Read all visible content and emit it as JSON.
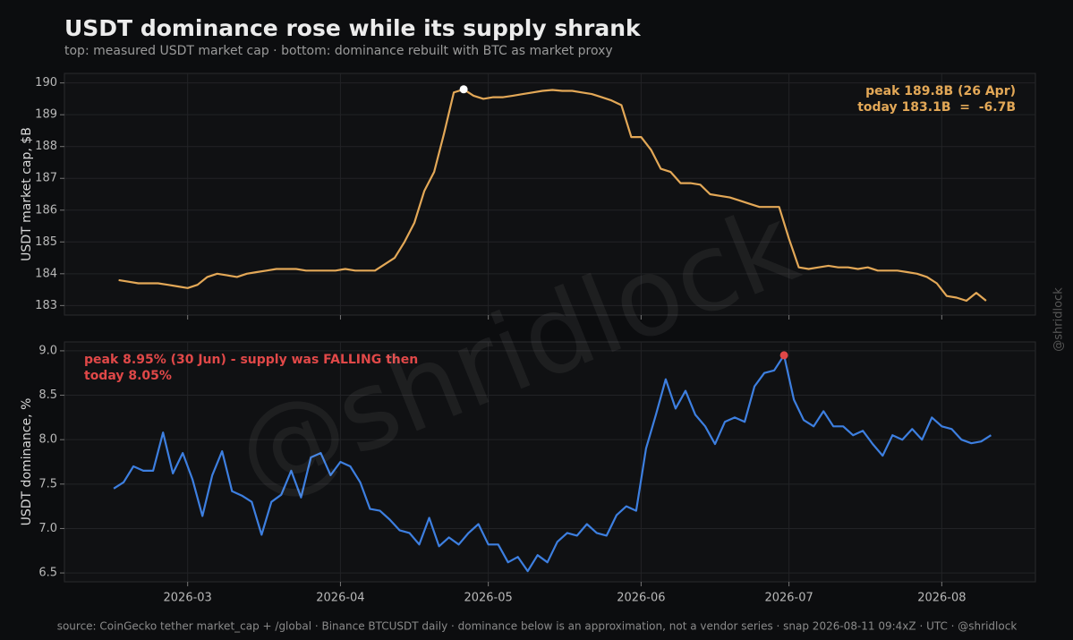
{
  "title": "USDT dominance rose while its supply shrank",
  "subtitle": "top: measured USDT market cap · bottom: dominance rebuilt with BTC as market proxy",
  "source": "source: CoinGecko tether market_cap + /global · Binance BTCUSDT daily · dominance below is an approximation, not a vendor series · snap 2026-08-11 09:4xZ · UTC · @shridlock",
  "watermark": "@shridlock",
  "side_credit": "@shridlock",
  "chart_data": [
    {
      "type": "line",
      "ylabel": "USDT market cap, $B",
      "x": [
        45,
        47,
        49,
        51,
        53,
        55,
        57,
        59,
        61,
        63,
        65,
        67,
        69,
        71,
        73,
        75,
        77,
        79,
        81,
        83,
        85,
        87,
        89,
        91,
        93,
        95,
        97,
        99,
        101,
        103,
        105,
        107,
        109,
        111,
        113,
        115,
        117,
        119,
        121,
        123,
        125,
        127,
        129,
        131,
        133,
        135,
        137,
        139,
        141,
        143,
        145,
        147,
        149,
        151,
        153,
        155,
        157,
        159,
        161,
        163,
        165,
        167,
        169,
        171,
        173,
        175,
        177,
        179,
        181,
        183,
        185,
        187,
        189,
        191,
        193,
        195,
        197,
        199,
        201,
        203,
        205,
        207,
        209,
        211,
        213,
        215,
        217,
        219,
        221
      ],
      "series": [
        {
          "color": "#e3a857",
          "values": [
            183.8,
            183.75,
            183.7,
            183.7,
            183.7,
            183.65,
            183.6,
            183.55,
            183.65,
            183.9,
            184.0,
            183.95,
            183.9,
            184.0,
            184.05,
            184.1,
            184.15,
            184.15,
            184.15,
            184.1,
            184.1,
            184.1,
            184.1,
            184.15,
            184.1,
            184.1,
            184.1,
            184.3,
            184.5,
            185.0,
            185.6,
            186.6,
            187.2,
            188.4,
            189.7,
            189.8,
            189.6,
            189.5,
            189.55,
            189.55,
            189.6,
            189.65,
            189.7,
            189.75,
            189.78,
            189.75,
            189.75,
            189.7,
            189.65,
            189.55,
            189.45,
            189.3,
            188.3,
            188.3,
            187.9,
            187.3,
            187.2,
            186.85,
            186.85,
            186.8,
            186.5,
            186.45,
            186.4,
            186.3,
            186.2,
            186.1,
            186.1,
            186.1,
            185.1,
            184.2,
            184.15,
            184.2,
            184.25,
            184.2,
            184.2,
            184.15,
            184.2,
            184.1,
            184.1,
            184.1,
            184.05,
            184.0,
            183.9,
            183.7,
            183.3,
            183.25,
            183.15,
            183.4,
            183.15
          ]
        }
      ],
      "ylim": [
        182.7,
        190.3
      ],
      "yticks": [
        183,
        184,
        185,
        186,
        187,
        188,
        189,
        190
      ],
      "grid": true,
      "peak_color": "#ffffff",
      "annotation_color": "#e3a857",
      "annotation_corner": "upper right",
      "annotations": [
        "peak 189.8B (26 Apr)",
        "today 183.1B  =  -6.7B"
      ]
    },
    {
      "type": "line",
      "ylabel": "USDT dominance, %",
      "x": [
        44,
        46,
        48,
        50,
        52,
        54,
        56,
        58,
        60,
        62,
        64,
        66,
        68,
        70,
        72,
        74,
        76,
        78,
        80,
        82,
        84,
        86,
        88,
        90,
        92,
        94,
        96,
        98,
        100,
        102,
        104,
        106,
        108,
        110,
        112,
        114,
        116,
        118,
        120,
        122,
        124,
        126,
        128,
        130,
        132,
        134,
        136,
        138,
        140,
        142,
        144,
        146,
        148,
        150,
        152,
        154,
        156,
        158,
        160,
        162,
        164,
        166,
        168,
        170,
        172,
        174,
        176,
        178,
        180,
        182,
        184,
        186,
        188,
        190,
        192,
        194,
        196,
        198,
        200,
        202,
        204,
        206,
        208,
        210,
        212,
        214,
        216,
        218,
        220,
        222
      ],
      "series": [
        {
          "color": "#3d7fe0",
          "values": [
            7.45,
            7.52,
            7.7,
            7.65,
            7.65,
            8.08,
            7.62,
            7.85,
            7.55,
            7.14,
            7.6,
            7.87,
            7.42,
            7.37,
            7.3,
            6.93,
            7.3,
            7.38,
            7.65,
            7.35,
            7.8,
            7.85,
            7.6,
            7.75,
            7.7,
            7.52,
            7.22,
            7.2,
            7.1,
            6.98,
            6.95,
            6.82,
            7.12,
            6.8,
            6.9,
            6.82,
            6.95,
            7.05,
            6.82,
            6.82,
            6.62,
            6.68,
            6.52,
            6.7,
            6.62,
            6.85,
            6.95,
            6.92,
            7.05,
            6.95,
            6.92,
            7.15,
            7.25,
            7.2,
            7.9,
            8.28,
            8.68,
            8.35,
            8.55,
            8.28,
            8.15,
            7.95,
            8.2,
            8.25,
            8.2,
            8.6,
            8.75,
            8.78,
            8.95,
            8.45,
            8.22,
            8.15,
            8.32,
            8.15,
            8.15,
            8.05,
            8.1,
            7.95,
            7.82,
            8.05,
            8.0,
            8.12,
            8.0,
            8.25,
            8.15,
            8.12,
            8.0,
            7.96,
            7.98,
            8.05
          ]
        }
      ],
      "ylim": [
        6.4,
        9.1
      ],
      "yticks": [
        6.5,
        {
          "value": 7,
          "label": "7.0"
        },
        7.5,
        {
          "value": 8,
          "label": "8.0"
        },
        8.5,
        {
          "value": 9,
          "label": "9.0"
        }
      ],
      "grid": true,
      "xlim": [
        34,
        231
      ],
      "xticks": [
        {
          "value": 59,
          "label": "2026-03"
        },
        {
          "value": 90,
          "label": "2026-04"
        },
        {
          "value": 120,
          "label": "2026-05"
        },
        {
          "value": 151,
          "label": "2026-06"
        },
        {
          "value": 181,
          "label": "2026-07"
        },
        {
          "value": 212,
          "label": "2026-08"
        }
      ],
      "peak_color": "#e04848",
      "annotation_color": "#e04848",
      "annotation_corner": "upper left",
      "annotations": [
        "peak 8.95% (30 Jun) - supply was FALLING then",
        "today 8.05%"
      ]
    }
  ]
}
